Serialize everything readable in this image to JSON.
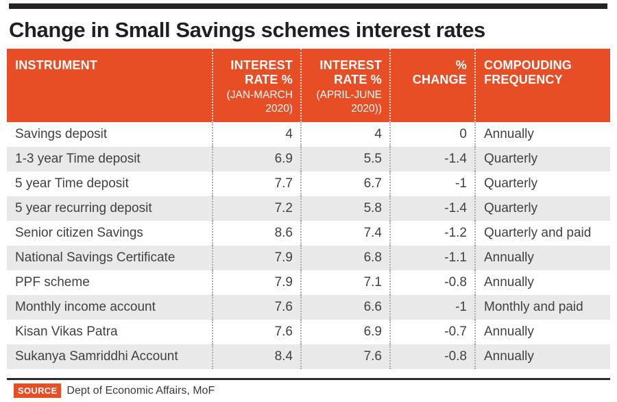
{
  "page": {
    "title": "Change in Small Savings schemes interest rates"
  },
  "colors": {
    "accent_orange": "#e84e25",
    "alt_row_gray": "#e9e9e9",
    "text_dark": "#414042",
    "topbar_black": "#262223"
  },
  "table": {
    "columns": [
      {
        "label": "INSTRUMENT",
        "sublabel": ""
      },
      {
        "label": "INTEREST\nRATE %",
        "sublabel": "(JAN-MARCH\n2020)"
      },
      {
        "label": "INTEREST\nRATE %",
        "sublabel": "(APRIL-JUNE\n2020))"
      },
      {
        "label": "%\nCHANGE",
        "sublabel": ""
      },
      {
        "label": "COMPOUDING\nFREQUENCY",
        "sublabel": ""
      }
    ],
    "rows": [
      {
        "cells": [
          "Savings deposit",
          "4",
          "4",
          "0",
          "Annually"
        ]
      },
      {
        "cells": [
          "1-3 year Time deposit",
          "6.9",
          "5.5",
          "-1.4",
          "Quarterly"
        ]
      },
      {
        "cells": [
          "5 year Time deposit",
          "7.7",
          "6.7",
          "-1",
          "Quarterly"
        ]
      },
      {
        "cells": [
          "5 year recurring deposit",
          "7.2",
          "5.8",
          "-1.4",
          "Quarterly"
        ]
      },
      {
        "cells": [
          "Senior citizen Savings",
          "8.6",
          "7.4",
          "-1.2",
          "Quarterly and paid"
        ]
      },
      {
        "cells": [
          "National Savings Certificate",
          "7.9",
          "6.8",
          "-1.1",
          "Annually"
        ]
      },
      {
        "cells": [
          "PPF scheme",
          "7.9",
          "7.1",
          "-0.8",
          "Annually"
        ]
      },
      {
        "cells": [
          "Monthly income account",
          "7.6",
          "6.6",
          "-1",
          "Monthly and paid"
        ]
      },
      {
        "cells": [
          "Kisan Vikas Patra",
          "7.6",
          "6.9",
          "-0.7",
          "Annually"
        ]
      },
      {
        "cells": [
          "Sukanya Samriddhi Account",
          "8.4",
          "7.6",
          "-0.8",
          "Annually"
        ]
      }
    ]
  },
  "source": {
    "badge": "SOURCE",
    "text": "Dept of Economic Affairs, MoF"
  },
  "chart_data": {
    "type": "table",
    "title": "Change in Small Savings schemes interest rates",
    "columns": [
      "INSTRUMENT",
      "INTEREST RATE % (JAN-MARCH 2020)",
      "INTEREST RATE % (APRIL-JUNE 2020))",
      "% CHANGE",
      "COMPOUDING FREQUENCY"
    ],
    "rows": [
      [
        "Savings deposit",
        4,
        4,
        0,
        "Annually"
      ],
      [
        "1-3 year Time deposit",
        6.9,
        5.5,
        -1.4,
        "Quarterly"
      ],
      [
        "5 year Time deposit",
        7.7,
        6.7,
        -1,
        "Quarterly"
      ],
      [
        "5 year recurring deposit",
        7.2,
        5.8,
        -1.4,
        "Quarterly"
      ],
      [
        "Senior citizen Savings",
        8.6,
        7.4,
        -1.2,
        "Quarterly and paid"
      ],
      [
        "National Savings Certificate",
        7.9,
        6.8,
        -1.1,
        "Annually"
      ],
      [
        "PPF scheme",
        7.9,
        7.1,
        -0.8,
        "Annually"
      ],
      [
        "Monthly income account",
        7.6,
        6.6,
        -1,
        "Monthly and paid"
      ],
      [
        "Kisan Vikas Patra",
        7.6,
        6.9,
        -0.7,
        "Annually"
      ],
      [
        "Sukanya Samriddhi Account",
        8.4,
        7.6,
        -0.8,
        "Annually"
      ]
    ],
    "source": "Dept of Economic Affairs, MoF"
  }
}
